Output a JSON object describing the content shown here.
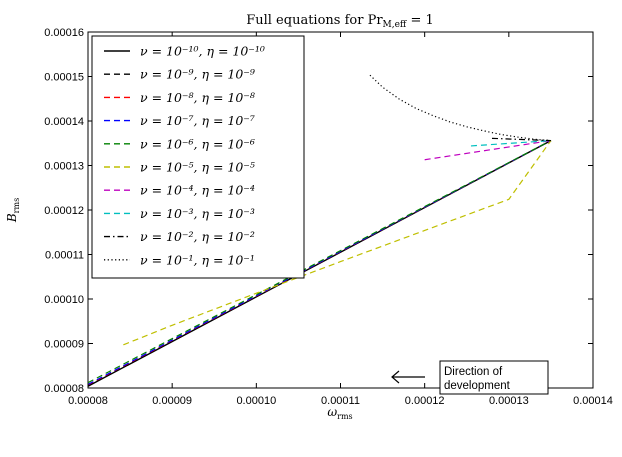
{
  "chart_data": {
    "type": "line",
    "title": "Full equations for Pr",
    "title_sub": "M,eff",
    "title_tail": " = 1",
    "xlabel": "ω",
    "xlabel_sub": "rms",
    "ylabel": "B",
    "ylabel_sub": "rms",
    "xlim": [
      8e-05,
      0.00014
    ],
    "ylim": [
      8e-05,
      0.00016
    ],
    "xticks": [
      "0.00008",
      "0.00009",
      "0.00010",
      "0.00011",
      "0.00012",
      "0.00013",
      "0.00014"
    ],
    "yticks": [
      "0.00008",
      "0.00009",
      "0.00010",
      "0.00011",
      "0.00012",
      "0.00013",
      "0.00014",
      "0.00015",
      "0.00016"
    ],
    "grid": false,
    "legend_position": "top-left",
    "series": [
      {
        "name": "ν = 10⁻¹⁰, η = 10⁻¹⁰",
        "color": "#000000",
        "dash": "solid",
        "x": [
          8e-05,
          0.000135
        ],
        "y": [
          8.04e-05,
          0.0001356
        ]
      },
      {
        "name": "ν = 10⁻⁹, η = 10⁻⁹",
        "color": "#000000",
        "dash": "dashed",
        "x": [
          8e-05,
          0.000135
        ],
        "y": [
          8.06e-05,
          0.0001356
        ]
      },
      {
        "name": "ν = 10⁻⁸, η = 10⁻⁸",
        "color": "#ff0000",
        "dash": "dashed",
        "x": [
          8e-05,
          0.000135
        ],
        "y": [
          8.07e-05,
          0.0001356
        ]
      },
      {
        "name": "ν = 10⁻⁷, η = 10⁻⁷",
        "color": "#0000ff",
        "dash": "dashed",
        "x": [
          8e-05,
          0.000135
        ],
        "y": [
          8.08e-05,
          0.0001356
        ]
      },
      {
        "name": "ν = 10⁻⁶, η = 10⁻⁶",
        "color": "#008000",
        "dash": "dashed",
        "x": [
          8e-05,
          0.000135
        ],
        "y": [
          8.12e-05,
          0.0001356
        ]
      },
      {
        "name": "ν = 10⁻⁵, η = 10⁻⁵",
        "color": "#bfbf00",
        "dash": "dashed",
        "x": [
          8.42e-05,
          9e-05,
          0.0001,
          0.00011,
          0.00012,
          0.00013,
          0.000135
        ],
        "y": [
          8.97e-05,
          9.41e-05,
          0.0001013,
          0.0001084,
          0.0001154,
          0.0001224,
          0.0001356
        ]
      },
      {
        "name": "ν = 10⁻⁴, η = 10⁻⁴",
        "color": "#bf00bf",
        "dash": "dashed",
        "x": [
          0.00012,
          0.000135
        ],
        "y": [
          0.0001313,
          0.0001356
        ]
      },
      {
        "name": "ν = 10⁻³, η = 10⁻³",
        "color": "#00bfbf",
        "dash": "dashed",
        "x": [
          0.0001255,
          0.000135
        ],
        "y": [
          0.0001344,
          0.0001356
        ]
      },
      {
        "name": "ν = 10⁻², η = 10⁻²",
        "color": "#000000",
        "dash": "dashdot",
        "x": [
          0.000128,
          0.000135
        ],
        "y": [
          0.0001361,
          0.0001356
        ]
      },
      {
        "name": "ν = 10⁻¹, η = 10⁻¹",
        "color": "#000000",
        "dash": "dotted",
        "x": [
          0.0001135,
          0.000115,
          0.000117,
          0.000119,
          0.000121,
          0.000123,
          0.000125,
          0.000127,
          0.000129,
          0.000131,
          0.000133,
          0.000135
        ],
        "y": [
          0.0001503,
          0.0001476,
          0.0001449,
          0.0001428,
          0.0001412,
          0.0001398,
          0.0001387,
          0.0001378,
          0.000137,
          0.0001364,
          0.0001359,
          0.0001356
        ]
      }
    ],
    "annotation": {
      "lines": [
        "Direction of",
        "development"
      ],
      "arrow": "left"
    }
  }
}
